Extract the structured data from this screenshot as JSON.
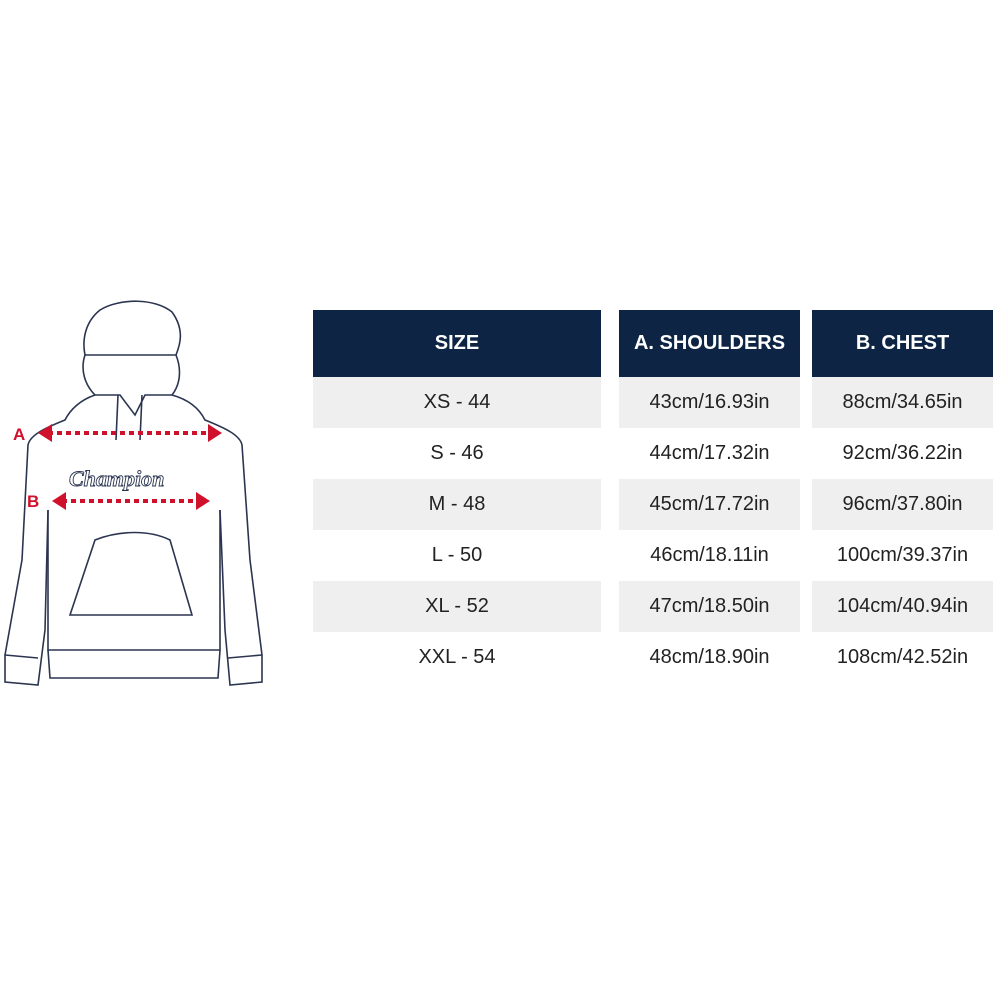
{
  "diagram": {
    "brand": "Champion",
    "markers": [
      {
        "label": "A",
        "meaning": "shoulders"
      },
      {
        "label": "B",
        "meaning": "chest"
      }
    ],
    "accent_color": "#d0112b",
    "outline_color": "#2b3550"
  },
  "table": {
    "header_color": "#0d2444",
    "stripe_color": "#efefef",
    "headers": [
      "SIZE",
      "A. SHOULDERS",
      "B. CHEST"
    ],
    "rows": [
      {
        "size": "XS - 44",
        "shoulders": "43cm/16.93in",
        "chest": "88cm/34.65in"
      },
      {
        "size": "S - 46",
        "shoulders": "44cm/17.32in",
        "chest": "92cm/36.22in"
      },
      {
        "size": "M - 48",
        "shoulders": "45cm/17.72in",
        "chest": "96cm/37.80in"
      },
      {
        "size": "L - 50",
        "shoulders": "46cm/18.11in",
        "chest": "100cm/39.37in"
      },
      {
        "size": "XL - 52",
        "shoulders": "47cm/18.50in",
        "chest": "104cm/40.94in"
      },
      {
        "size": "XXL - 54",
        "shoulders": "48cm/18.90in",
        "chest": "108cm/42.52in"
      }
    ]
  }
}
